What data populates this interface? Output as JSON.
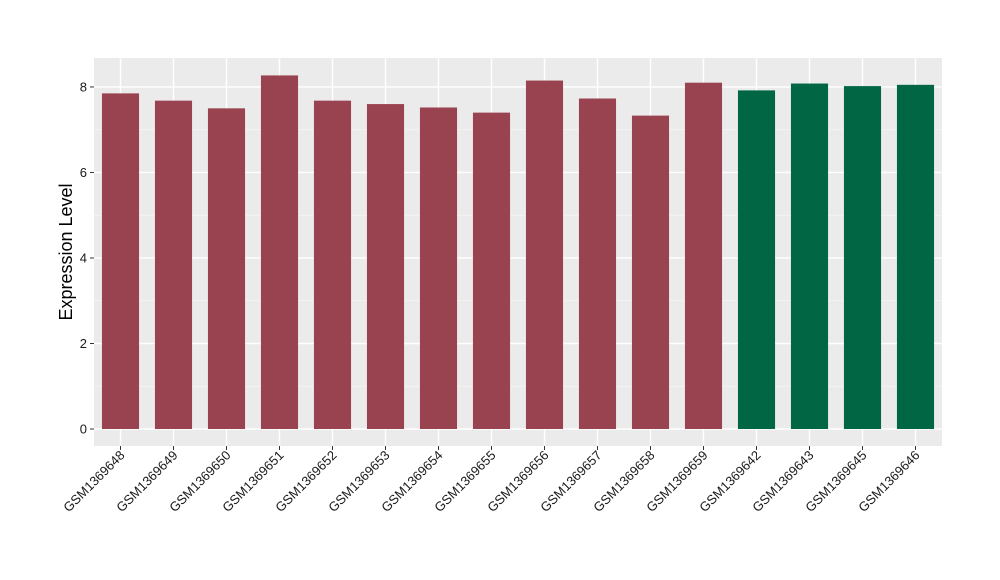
{
  "chart_data": {
    "type": "bar",
    "title": "",
    "xlabel": "",
    "ylabel": "Expression Level",
    "ylim": [
      0,
      8.6
    ],
    "yticks": [
      0,
      2,
      4,
      6,
      8
    ],
    "grid": true,
    "categories": [
      "GSM1369648",
      "GSM1369649",
      "GSM1369650",
      "GSM1369651",
      "GSM1369652",
      "GSM1369653",
      "GSM1369654",
      "GSM1369655",
      "GSM1369656",
      "GSM1369657",
      "GSM1369658",
      "GSM1369659",
      "GSM1369642",
      "GSM1369643",
      "GSM1369645",
      "GSM1369646"
    ],
    "values": [
      7.85,
      7.68,
      7.5,
      8.27,
      7.68,
      7.6,
      7.52,
      7.4,
      8.15,
      7.73,
      7.33,
      8.1,
      7.92,
      8.08,
      8.02,
      8.05
    ],
    "group_colors": [
      "#9a4350",
      "#9a4350",
      "#9a4350",
      "#9a4350",
      "#9a4350",
      "#9a4350",
      "#9a4350",
      "#9a4350",
      "#9a4350",
      "#9a4350",
      "#9a4350",
      "#9a4350",
      "#006644",
      "#006644",
      "#006644",
      "#006644"
    ]
  },
  "colors": {
    "panel_background": "#ebebeb",
    "grid_major": "#ffffff",
    "grid_minor": "#f5f5f5"
  }
}
